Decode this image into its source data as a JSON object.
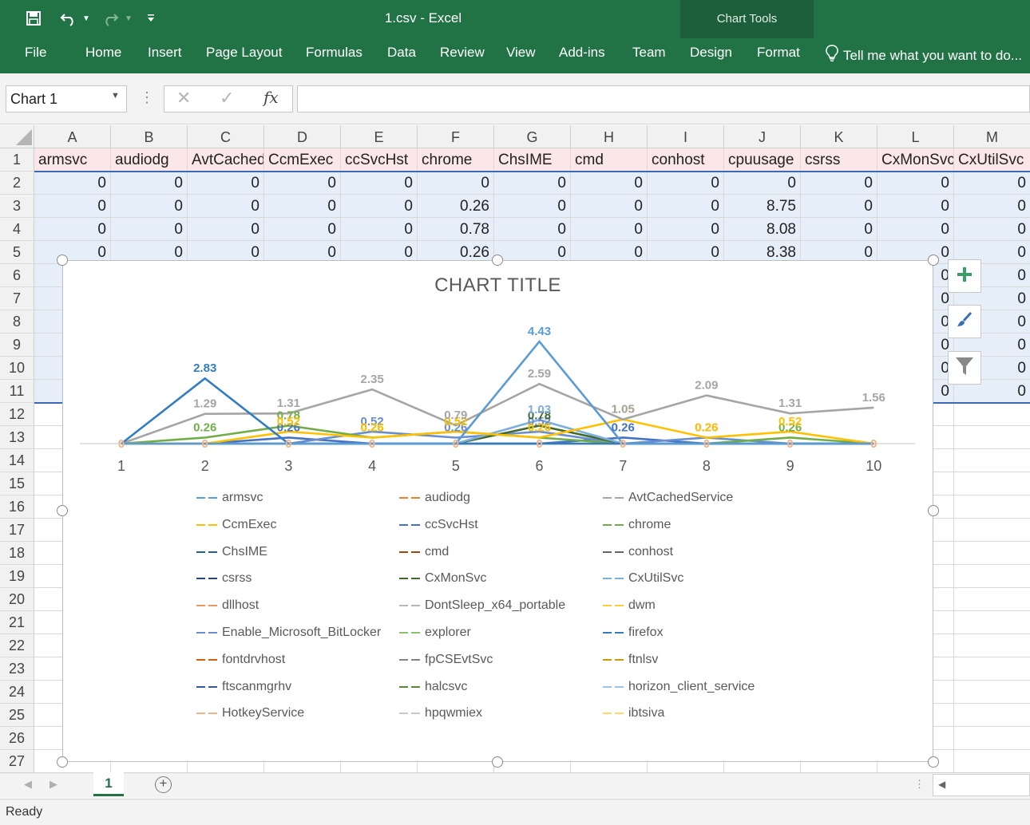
{
  "window": {
    "title": "1.csv - Excel",
    "context_tab_group": "Chart Tools"
  },
  "ribbon": {
    "tabs": [
      {
        "label": "File"
      },
      {
        "label": "Home"
      },
      {
        "label": "Insert"
      },
      {
        "label": "Page Layout"
      },
      {
        "label": "Formulas"
      },
      {
        "label": "Data"
      },
      {
        "label": "Review"
      },
      {
        "label": "View"
      },
      {
        "label": "Add-ins"
      },
      {
        "label": "Team"
      },
      {
        "label": "Design"
      },
      {
        "label": "Format"
      }
    ],
    "tell_me": "Tell me what you want to do..."
  },
  "formula_bar": {
    "name_box": "Chart 1",
    "formula": ""
  },
  "sheet": {
    "columns": [
      "A",
      "B",
      "C",
      "D",
      "E",
      "F",
      "G",
      "H",
      "I",
      "J",
      "K",
      "L",
      "M"
    ],
    "rows": [
      "1",
      "2",
      "3",
      "4",
      "5",
      "6",
      "7",
      "8",
      "9",
      "10",
      "11",
      "12",
      "13",
      "14",
      "15",
      "16",
      "17",
      "18",
      "19",
      "20",
      "21",
      "22",
      "23",
      "24",
      "25",
      "26",
      "27"
    ],
    "headers": [
      "armsvc",
      "audiodg",
      "AvtCachedService",
      "CcmExec",
      "ccSvcHst",
      "chrome",
      "ChsIME",
      "cmd",
      "conhost",
      "cpuusage",
      "csrss",
      "CxMonSvc",
      "CxUtilSvc"
    ],
    "data_rows": [
      [
        "0",
        "0",
        "0",
        "0",
        "0",
        "0",
        "0",
        "0",
        "0",
        "0",
        "0",
        "0",
        "0"
      ],
      [
        "0",
        "0",
        "0",
        "0",
        "0",
        "0.26",
        "0",
        "0",
        "0",
        "8.75",
        "0",
        "0",
        "0"
      ],
      [
        "0",
        "0",
        "0",
        "0",
        "0",
        "0.78",
        "0",
        "0",
        "0",
        "8.08",
        "0",
        "0",
        "0"
      ],
      [
        "0",
        "0",
        "0",
        "0",
        "0",
        "0.26",
        "0",
        "0",
        "0",
        "8.38",
        "0",
        "0",
        "0"
      ]
    ],
    "right_visible_L": [
      "0",
      "0",
      "0",
      "0",
      "0",
      "0"
    ],
    "right_visible_M": [
      "0",
      "0",
      "0",
      "0",
      "0",
      "0"
    ]
  },
  "chart_data": {
    "type": "line",
    "title": "CHART TITLE",
    "x": [
      1,
      2,
      3,
      4,
      5,
      6,
      7,
      8,
      9,
      10
    ],
    "series": [
      {
        "name": "armsvc",
        "color": "#5b9bd5",
        "values": [
          0,
          0,
          0,
          0,
          0,
          4.43,
          0,
          0,
          0,
          0
        ]
      },
      {
        "name": "audiodg",
        "color": "#ed7d31",
        "values": [
          0,
          0,
          0,
          0,
          0,
          0,
          0,
          0,
          0,
          0
        ]
      },
      {
        "name": "AvtCachedService",
        "color": "#a5a5a5",
        "values": [
          0,
          1.29,
          1.31,
          2.35,
          0.79,
          2.59,
          1.05,
          2.09,
          1.31,
          1.56
        ]
      },
      {
        "name": "CcmExec",
        "color": "#ffc000",
        "values": [
          0,
          0,
          0.52,
          0.26,
          0.52,
          0.26,
          1.05,
          0.26,
          0.52,
          0
        ]
      },
      {
        "name": "ccSvcHst",
        "color": "#4472c4",
        "values": [
          0,
          0,
          0.26,
          0,
          0,
          0,
          0.26,
          0,
          0,
          0
        ]
      },
      {
        "name": "chrome",
        "color": "#70ad47",
        "values": [
          0,
          0.26,
          0.78,
          0.26,
          0.52,
          0.26,
          0,
          0,
          0.26,
          0
        ]
      },
      {
        "name": "ChsIME",
        "color": "#255e91",
        "values": [
          0,
          0,
          0,
          0,
          0,
          0,
          0,
          0,
          0,
          0
        ]
      },
      {
        "name": "cmd",
        "color": "#9e480e",
        "values": [
          0,
          0,
          0,
          0,
          0,
          0,
          0,
          0,
          0,
          0
        ]
      },
      {
        "name": "conhost",
        "color": "#636363",
        "values": [
          0,
          0,
          0,
          0,
          0,
          0,
          0,
          0,
          0,
          0
        ]
      },
      {
        "name": "csrss",
        "color": "#264478",
        "values": [
          0,
          0,
          0,
          0,
          0,
          0,
          0,
          0,
          0,
          0
        ]
      },
      {
        "name": "CxMonSvc",
        "color": "#43682b",
        "values": [
          0,
          0,
          0,
          0,
          0,
          0.78,
          0,
          0,
          0,
          0
        ]
      },
      {
        "name": "CxUtilSvc",
        "color": "#7cafdd",
        "values": [
          0,
          0,
          0,
          0,
          0,
          1.03,
          0,
          0,
          0,
          0
        ]
      },
      {
        "name": "dllhost",
        "color": "#f1975a",
        "values": [
          0,
          0,
          0,
          0,
          0,
          0,
          0,
          0,
          0,
          0
        ]
      },
      {
        "name": "DontSleep_x64_portable",
        "color": "#b7b7b7",
        "values": [
          0,
          0,
          0,
          0,
          0,
          0,
          0,
          0,
          0,
          0
        ]
      },
      {
        "name": "dwm",
        "color": "#ffcd33",
        "values": [
          0,
          0,
          0,
          0,
          0,
          0,
          0,
          0,
          0,
          0
        ]
      },
      {
        "name": "Enable_Microsoft_BitLocker",
        "color": "#698ed0",
        "values": [
          0,
          0,
          0,
          0.52,
          0.26,
          0.52,
          0,
          0.26,
          0,
          0
        ]
      },
      {
        "name": "explorer",
        "color": "#8cc168",
        "values": [
          0,
          0,
          0,
          0,
          0,
          0,
          0,
          0,
          0,
          0
        ]
      },
      {
        "name": "firefox",
        "color": "#327dc2",
        "values": [
          0,
          2.83,
          0,
          0,
          0,
          0,
          0,
          0,
          0,
          0
        ]
      },
      {
        "name": "fontdrvhost",
        "color": "#d26012",
        "values": [
          0,
          0,
          0,
          0,
          0,
          0,
          0,
          0,
          0,
          0
        ]
      },
      {
        "name": "fpCSEvtSvc",
        "color": "#848484",
        "values": [
          0,
          0,
          0,
          0,
          0,
          0,
          0,
          0,
          0,
          0
        ]
      },
      {
        "name": "ftnlsv",
        "color": "#cc9a00",
        "values": [
          0,
          0,
          0,
          0,
          0,
          0,
          0,
          0,
          0,
          0
        ]
      },
      {
        "name": "ftscanmgrhv",
        "color": "#335aa1",
        "values": [
          0,
          0,
          0,
          0,
          0,
          0,
          0,
          0,
          0,
          0
        ]
      },
      {
        "name": "halcsvc",
        "color": "#5a8a39",
        "values": [
          0,
          0,
          0,
          0,
          0,
          0,
          0,
          0,
          0,
          0
        ]
      },
      {
        "name": "horizon_client_service",
        "color": "#9dc3e6",
        "values": [
          0,
          0,
          0,
          0,
          0,
          0,
          0,
          0,
          0,
          0
        ]
      },
      {
        "name": "HotkeyService",
        "color": "#f4b183",
        "values": [
          0,
          0,
          0,
          0,
          0,
          0,
          0,
          0,
          0,
          0
        ]
      },
      {
        "name": "hpqwmiex",
        "color": "#c9c9c9",
        "values": [
          0,
          0,
          0,
          0,
          0,
          0,
          0,
          0,
          0,
          0
        ]
      },
      {
        "name": "ibtsiva",
        "color": "#ffd966",
        "values": [
          0,
          0,
          0,
          0,
          0,
          0,
          0,
          0,
          0,
          0
        ]
      }
    ],
    "data_labels": true,
    "legend_position": "bottom",
    "ylim": [
      0,
      4.43
    ]
  },
  "sheet_tabs": [
    {
      "label": "1"
    }
  ],
  "status": {
    "text": "Ready"
  }
}
